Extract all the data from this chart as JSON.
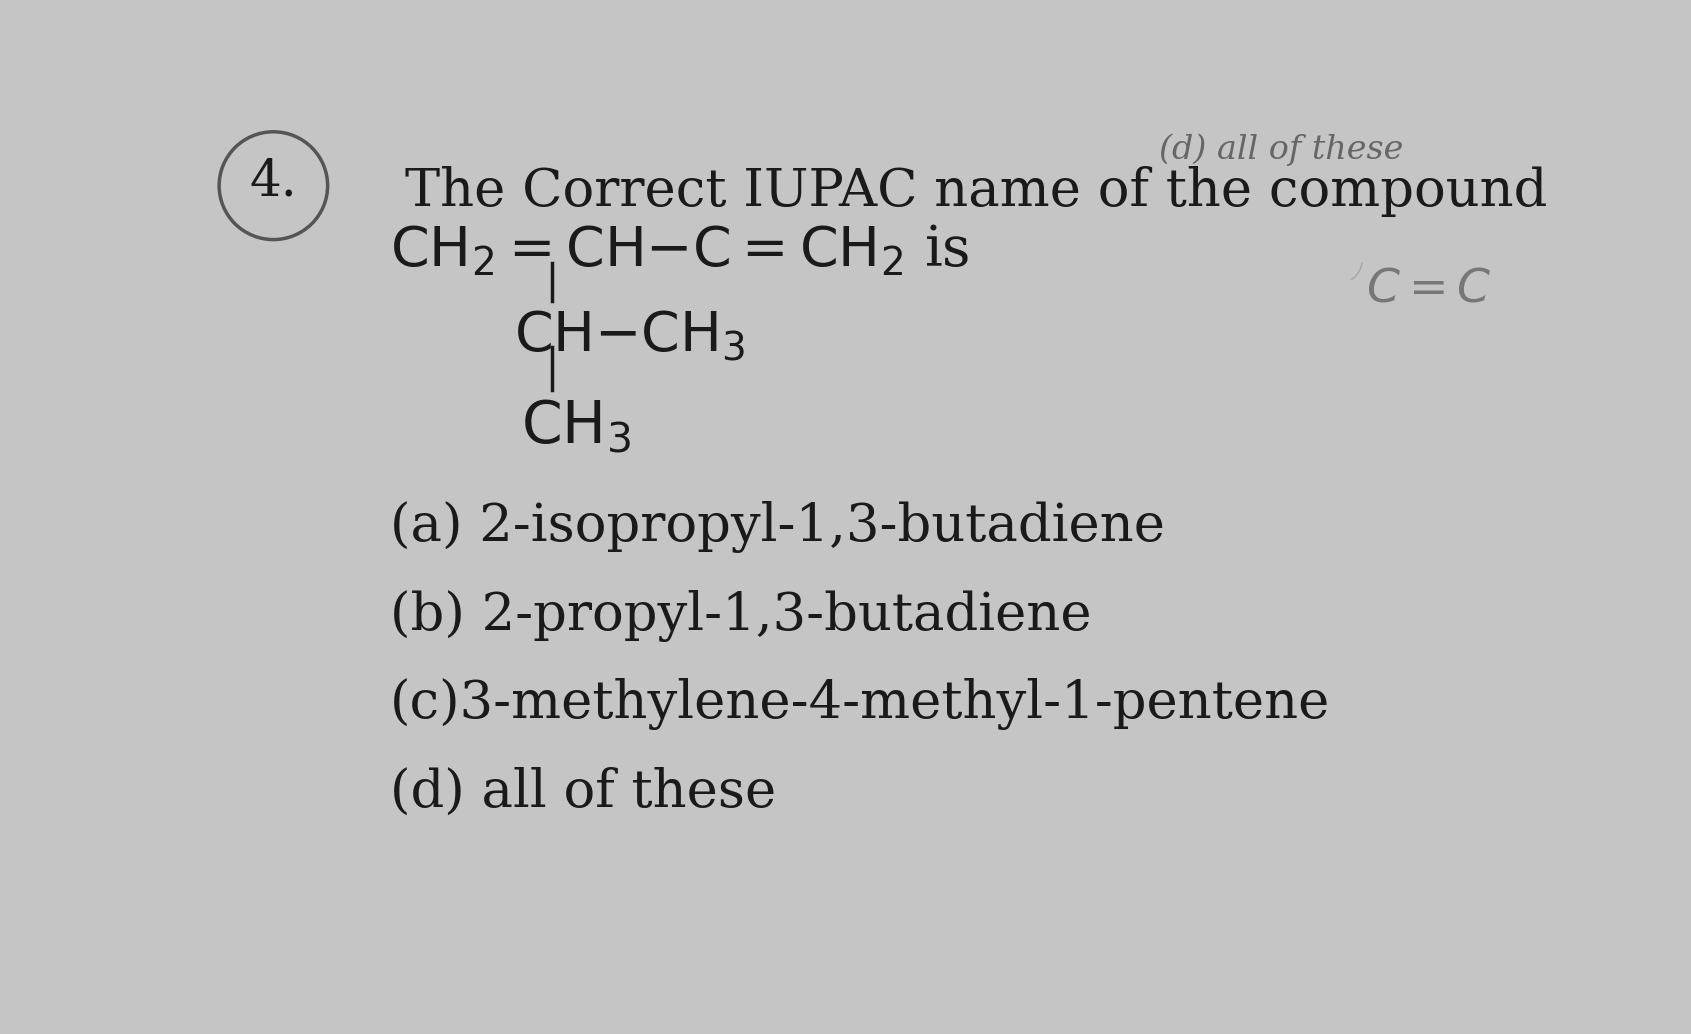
{
  "background_color": "#c5c5c5",
  "question_number": "4.",
  "title_line1": "The Correct IUPAC name of the compound",
  "options": [
    "(a) 2-isopropyl-1,3-butadiene",
    "(b) 2-propyl-1,3-butadiene",
    "(c)3-methylene-4-methyl-1-pentene",
    "(d) all of these"
  ],
  "top_partial": "(d) all of these",
  "font_size_title": 38,
  "font_size_formula": 40,
  "font_size_options": 38,
  "font_size_qnum": 36,
  "text_color": "#1a1a1a",
  "circle_color": "#555555",
  "line_color": "#1a1a1a",
  "scratch_color": "#888888"
}
